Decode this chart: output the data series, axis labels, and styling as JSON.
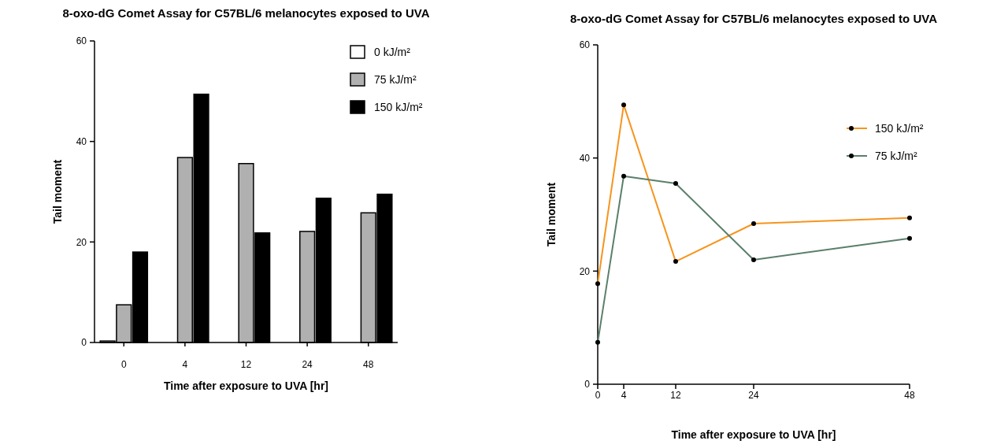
{
  "chart_data": [
    {
      "type": "bar",
      "title": "8-oxo-dG Comet Assay for C57BL/6 melanocytes exposed to UVA",
      "xlabel": "Time after exposure to UVA [hr]",
      "ylabel": "Tail moment",
      "categories": [
        "0",
        "4",
        "12",
        "24",
        "48"
      ],
      "ylim": [
        0,
        60
      ],
      "yticks": [
        0,
        20,
        40,
        60
      ],
      "legend": "top right",
      "series": [
        {
          "name": "0 kJ/m²",
          "color": "#ffffff",
          "values": [
            0.3,
            null,
            null,
            null,
            null
          ]
        },
        {
          "name": "75 kJ/m²",
          "color": "#b0b0b0",
          "values": [
            7.5,
            36.8,
            35.6,
            22.1,
            25.8
          ]
        },
        {
          "name": "150 kJ/m²",
          "color": "#000000",
          "values": [
            18.0,
            49.4,
            21.8,
            28.7,
            29.5
          ]
        }
      ]
    },
    {
      "type": "line",
      "title": "8-oxo-dG Comet Assay for C57BL/6 melanocytes exposed to UVA",
      "xlabel": "Time after exposure to UVA [hr]",
      "ylabel": "Tail moment",
      "x": [
        0,
        4,
        12,
        24,
        48
      ],
      "xlim": [
        0,
        48
      ],
      "xticks": [
        0,
        4,
        12,
        24,
        48
      ],
      "ylim": [
        0,
        60
      ],
      "yticks": [
        0,
        20,
        40,
        60
      ],
      "legend": "right",
      "marker": "circle",
      "series": [
        {
          "name": "150 kJ/m²",
          "color": "#f7941d",
          "values": [
            17.8,
            49.4,
            21.7,
            28.4,
            29.4
          ]
        },
        {
          "name": "75 kJ/m²",
          "color": "#5a7f6a",
          "values": [
            7.4,
            36.8,
            35.5,
            22.0,
            25.8
          ]
        }
      ]
    }
  ]
}
